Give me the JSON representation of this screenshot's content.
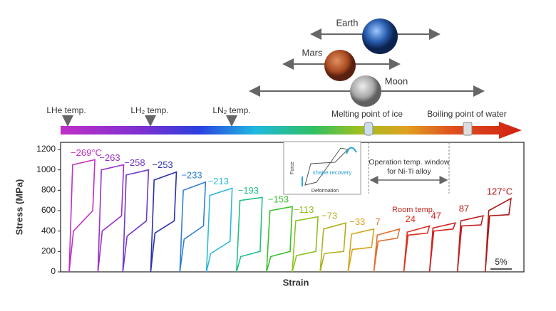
{
  "temperature_scale": {
    "bodies": [
      "Earth",
      "Mars",
      "Moon"
    ],
    "markers": [
      "LHe temp.",
      "LH₂ temp.",
      "LN₂ temp.",
      "Melting point of ice",
      "Boiling point of water"
    ]
  },
  "chart_data": {
    "type": "hysteresis",
    "y_label": "Stress (MPa)",
    "x_label": "Strain",
    "xlim": [
      0,
      108
    ],
    "ylim": [
      0,
      1270
    ],
    "yticks": [
      0,
      200,
      400,
      600,
      800,
      1000,
      1200
    ],
    "series": [
      {
        "name": "−269°C",
        "color": "#c12fc4",
        "x": [
          2,
          2.8,
          8,
          7.5,
          3,
          2
        ],
        "values": [
          0,
          1050,
          1100,
          600,
          400,
          0
        ]
      },
      {
        "name": "−263",
        "color": "#9a32c9",
        "x": [
          8.7,
          9.5,
          14.7,
          14.2,
          9.7,
          8.7
        ],
        "values": [
          0,
          1000,
          1050,
          550,
          400,
          0
        ]
      },
      {
        "name": "−258",
        "color": "#7038c8",
        "x": [
          14.5,
          15.3,
          20.5,
          20,
          15.5,
          14.5
        ],
        "values": [
          0,
          950,
          1000,
          500,
          350,
          0
        ]
      },
      {
        "name": "−253",
        "color": "#2b2fae",
        "x": [
          21,
          21.8,
          27,
          26.5,
          22,
          21
        ],
        "values": [
          0,
          900,
          980,
          500,
          380,
          0
        ]
      },
      {
        "name": "−233",
        "color": "#2f7fd0",
        "x": [
          27.8,
          28.6,
          33.8,
          33.3,
          28.8,
          27.8
        ],
        "values": [
          0,
          800,
          880,
          450,
          320,
          0
        ]
      },
      {
        "name": "−213",
        "color": "#2fb9db",
        "x": [
          34,
          34.8,
          40,
          39.5,
          35,
          34
        ],
        "values": [
          0,
          750,
          820,
          300,
          180,
          0
        ]
      },
      {
        "name": "−193",
        "color": "#22c083",
        "x": [
          41,
          41.8,
          47,
          46.5,
          42,
          41
        ],
        "values": [
          0,
          700,
          730,
          200,
          150,
          0
        ]
      },
      {
        "name": "−153",
        "color": "#3dbf32",
        "x": [
          48,
          48.8,
          54,
          53.5,
          49,
          48
        ],
        "values": [
          0,
          600,
          640,
          200,
          150,
          0
        ]
      },
      {
        "name": "−113",
        "color": "#8ec221",
        "x": [
          54,
          54.8,
          60,
          59.5,
          55,
          54
        ],
        "values": [
          0,
          500,
          540,
          200,
          160,
          0
        ]
      },
      {
        "name": "−73",
        "color": "#b0b020",
        "x": [
          60.5,
          61.3,
          66.5,
          66,
          61.5,
          60.5
        ],
        "values": [
          0,
          420,
          480,
          200,
          180,
          0
        ]
      },
      {
        "name": "−33",
        "color": "#d4a41f",
        "x": [
          67,
          67.8,
          73,
          72.5,
          68,
          67
        ],
        "values": [
          0,
          370,
          420,
          240,
          220,
          0
        ]
      },
      {
        "name": "7",
        "color": "#e0702f",
        "x": [
          73,
          73.8,
          79,
          78.5,
          74,
          73
        ],
        "values": [
          0,
          360,
          420,
          330,
          300,
          0
        ]
      },
      {
        "name": "24",
        "color": "#d8321f",
        "x": [
          80,
          80.8,
          86,
          85.5,
          81,
          80
        ],
        "values": [
          0,
          390,
          450,
          380,
          360,
          0
        ]
      },
      {
        "name": "47",
        "color": "#cf2320",
        "x": [
          86,
          86.8,
          92,
          91.5,
          87,
          86
        ],
        "values": [
          0,
          430,
          480,
          420,
          400,
          0
        ]
      },
      {
        "name": "87",
        "color": "#c02020",
        "x": [
          92.5,
          93.3,
          98.5,
          98,
          93.5,
          92.5
        ],
        "values": [
          0,
          500,
          550,
          460,
          450,
          0
        ]
      },
      {
        "name": "127°C",
        "color": "#b01818",
        "x": [
          99,
          99.8,
          105,
          104.5,
          100,
          99
        ],
        "values": [
          0,
          600,
          720,
          560,
          550,
          0
        ]
      }
    ],
    "annotations": [
      "Operation temp. window",
      "for Ni-Ti alloy",
      "Room temp."
    ],
    "inset": {
      "y_label": "Force",
      "x_label": "Deformation",
      "note": "shape recovery"
    },
    "scale_bar": {
      "value": 5,
      "label": "5%"
    }
  }
}
